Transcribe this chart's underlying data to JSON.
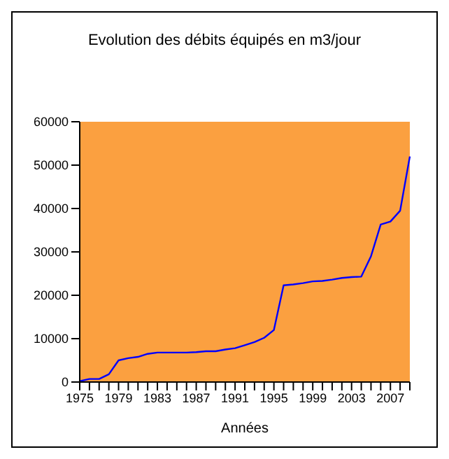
{
  "chart_data": {
    "type": "line",
    "title": "Evolution des débits équipés en m3/jour",
    "xlabel": "Années",
    "categories": [
      "1975",
      null,
      null,
      null,
      "1979",
      null,
      null,
      null,
      "1983",
      null,
      null,
      null,
      "1987",
      null,
      null,
      null,
      "1991",
      null,
      null,
      null,
      "1995",
      null,
      null,
      null,
      "1999",
      null,
      null,
      null,
      "2003",
      null,
      null,
      null,
      "2007",
      null,
      null
    ],
    "series": [
      {
        "color": "#0000ff",
        "values": [
          200,
          700,
          700,
          1800,
          5000,
          5500,
          5800,
          6500,
          6800,
          6800,
          6800,
          6800,
          6900,
          7100,
          7100,
          7500,
          7800,
          8500,
          9200,
          10200,
          12000,
          22300,
          22500,
          22800,
          23200,
          23300,
          23600,
          24000,
          24200,
          24300,
          29000,
          36300,
          37000,
          39500,
          52000
        ]
      }
    ],
    "ylim": [
      0,
      60000
    ],
    "yticks": [
      0,
      10000,
      20000,
      30000,
      40000,
      50000,
      60000
    ],
    "grid": false,
    "marker": "none",
    "line_style": "solid"
  }
}
